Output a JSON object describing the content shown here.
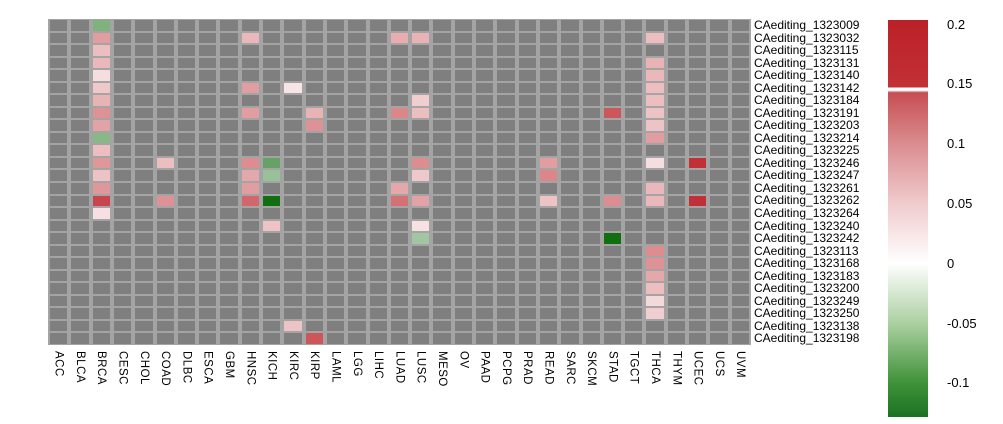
{
  "chart_data": {
    "type": "heatmap",
    "title": "",
    "xlabel": "",
    "ylabel": "",
    "x_categories": [
      "ACC",
      "BLCA",
      "BRCA",
      "CESC",
      "CHOL",
      "COAD",
      "DLBC",
      "ESCA",
      "GBM",
      "HNSC",
      "KICH",
      "KIRC",
      "KIRP",
      "LAML",
      "LGG",
      "LIHC",
      "LUAD",
      "LUSC",
      "MESO",
      "OV",
      "PAAD",
      "PCPG",
      "PRAD",
      "READ",
      "SARC",
      "SKCM",
      "STAD",
      "TGCT",
      "THCA",
      "THYM",
      "UCEC",
      "UCS",
      "UVM"
    ],
    "y_categories": [
      "CAediting_1323009",
      "CAediting_1323032",
      "CAediting_1323115",
      "CAediting_1323131",
      "CAediting_1323140",
      "CAediting_1323142",
      "CAediting_1323184",
      "CAediting_1323191",
      "CAediting_1323203",
      "CAediting_1323214",
      "CAediting_1323225",
      "CAediting_1323246",
      "CAediting_1323247",
      "CAediting_1323261",
      "CAediting_1323262",
      "CAediting_1323264",
      "CAediting_1323240",
      "CAediting_1323242",
      "CAediting_1323113",
      "CAediting_1323168",
      "CAediting_1323183",
      "CAediting_1323200",
      "CAediting_1323249",
      "CAediting_1323250",
      "CAediting_1323138",
      "CAediting_1323198"
    ],
    "na_color": "#7f7f7f",
    "grid_line_color": "#a4a4a4",
    "colormap": {
      "zero_color": "#ffffff",
      "pos_color": "#be252b",
      "pos_limit": 0.2,
      "neg_color": "#006400",
      "neg_limit": -0.15
    },
    "legend": {
      "tick_labels": [
        "0.2",
        "0.15",
        "0.1",
        "0.05",
        "0",
        "-0.05",
        "-0.1"
      ],
      "tick_values": [
        0.2,
        0.15,
        0.1,
        0.05,
        0,
        -0.05,
        -0.1
      ],
      "break_line_value": 0.145,
      "position": "right"
    },
    "cells": [
      {
        "y": "CAediting_1323009",
        "x": "BRCA",
        "v": -0.075
      },
      {
        "y": "CAediting_1323032",
        "x": "BRCA",
        "v": 0.09
      },
      {
        "y": "CAediting_1323032",
        "x": "HNSC",
        "v": 0.065
      },
      {
        "y": "CAediting_1323032",
        "x": "LUAD",
        "v": 0.075
      },
      {
        "y": "CAediting_1323032",
        "x": "LUSC",
        "v": 0.07
      },
      {
        "y": "CAediting_1323032",
        "x": "THCA",
        "v": 0.06
      },
      {
        "y": "CAediting_1323115",
        "x": "BRCA",
        "v": 0.06
      },
      {
        "y": "CAediting_1323131",
        "x": "BRCA",
        "v": 0.065
      },
      {
        "y": "CAediting_1323131",
        "x": "THCA",
        "v": 0.07
      },
      {
        "y": "CAediting_1323140",
        "x": "BRCA",
        "v": 0.03
      },
      {
        "y": "CAediting_1323140",
        "x": "THCA",
        "v": 0.065
      },
      {
        "y": "CAediting_1323142",
        "x": "BRCA",
        "v": 0.05
      },
      {
        "y": "CAediting_1323142",
        "x": "HNSC",
        "v": 0.09
      },
      {
        "y": "CAediting_1323142",
        "x": "KIRC",
        "v": 0.025
      },
      {
        "y": "CAediting_1323142",
        "x": "THCA",
        "v": 0.06
      },
      {
        "y": "CAediting_1323184",
        "x": "BRCA",
        "v": 0.07
      },
      {
        "y": "CAediting_1323184",
        "x": "LUSC",
        "v": 0.045
      },
      {
        "y": "CAediting_1323184",
        "x": "THCA",
        "v": 0.06
      },
      {
        "y": "CAediting_1323191",
        "x": "BRCA",
        "v": 0.1
      },
      {
        "y": "CAediting_1323191",
        "x": "HNSC",
        "v": 0.09
      },
      {
        "y": "CAediting_1323191",
        "x": "KIRP",
        "v": 0.07
      },
      {
        "y": "CAediting_1323191",
        "x": "LUAD",
        "v": 0.11
      },
      {
        "y": "CAediting_1323191",
        "x": "LUSC",
        "v": 0.06
      },
      {
        "y": "CAediting_1323191",
        "x": "STAD",
        "v": 0.155
      },
      {
        "y": "CAediting_1323191",
        "x": "THCA",
        "v": 0.055
      },
      {
        "y": "CAediting_1323203",
        "x": "BRCA",
        "v": 0.085
      },
      {
        "y": "CAediting_1323203",
        "x": "KIRP",
        "v": 0.1
      },
      {
        "y": "CAediting_1323203",
        "x": "THCA",
        "v": 0.055
      },
      {
        "y": "CAediting_1323214",
        "x": "BRCA",
        "v": -0.07
      },
      {
        "y": "CAediting_1323214",
        "x": "THCA",
        "v": 0.09
      },
      {
        "y": "CAediting_1323225",
        "x": "BRCA",
        "v": 0.06
      },
      {
        "y": "CAediting_1323246",
        "x": "BRCA",
        "v": 0.095
      },
      {
        "y": "CAediting_1323246",
        "x": "COAD",
        "v": 0.06
      },
      {
        "y": "CAediting_1323246",
        "x": "HNSC",
        "v": 0.105
      },
      {
        "y": "CAediting_1323246",
        "x": "KICH",
        "v": -0.09
      },
      {
        "y": "CAediting_1323246",
        "x": "LUSC",
        "v": 0.105
      },
      {
        "y": "CAediting_1323246",
        "x": "READ",
        "v": 0.09
      },
      {
        "y": "CAediting_1323246",
        "x": "THCA",
        "v": 0.03
      },
      {
        "y": "CAediting_1323246",
        "x": "UCEC",
        "v": 0.19
      },
      {
        "y": "CAediting_1323247",
        "x": "BRCA",
        "v": 0.055
      },
      {
        "y": "CAediting_1323247",
        "x": "HNSC",
        "v": 0.08
      },
      {
        "y": "CAediting_1323247",
        "x": "KICH",
        "v": -0.06
      },
      {
        "y": "CAediting_1323247",
        "x": "LUSC",
        "v": 0.05
      },
      {
        "y": "CAediting_1323247",
        "x": "READ",
        "v": 0.11
      },
      {
        "y": "CAediting_1323261",
        "x": "BRCA",
        "v": 0.095
      },
      {
        "y": "CAediting_1323261",
        "x": "HNSC",
        "v": 0.09
      },
      {
        "y": "CAediting_1323261",
        "x": "LUAD",
        "v": 0.08
      },
      {
        "y": "CAediting_1323261",
        "x": "THCA",
        "v": 0.065
      },
      {
        "y": "CAediting_1323262",
        "x": "BRCA",
        "v": 0.17
      },
      {
        "y": "CAediting_1323262",
        "x": "COAD",
        "v": 0.1
      },
      {
        "y": "CAediting_1323262",
        "x": "HNSC",
        "v": 0.14
      },
      {
        "y": "CAediting_1323262",
        "x": "KICH",
        "v": -0.14
      },
      {
        "y": "CAediting_1323262",
        "x": "LUAD",
        "v": 0.13
      },
      {
        "y": "CAediting_1323262",
        "x": "LUSC",
        "v": 0.085
      },
      {
        "y": "CAediting_1323262",
        "x": "READ",
        "v": 0.055
      },
      {
        "y": "CAediting_1323262",
        "x": "STAD",
        "v": 0.105
      },
      {
        "y": "CAediting_1323262",
        "x": "THCA",
        "v": 0.065
      },
      {
        "y": "CAediting_1323262",
        "x": "UCEC",
        "v": 0.19
      },
      {
        "y": "CAediting_1323264",
        "x": "BRCA",
        "v": 0.028
      },
      {
        "y": "CAediting_1323240",
        "x": "KICH",
        "v": 0.055
      },
      {
        "y": "CAediting_1323240",
        "x": "LUSC",
        "v": 0.027
      },
      {
        "y": "CAediting_1323242",
        "x": "LUSC",
        "v": -0.055
      },
      {
        "y": "CAediting_1323242",
        "x": "STAD",
        "v": -0.14
      },
      {
        "y": "CAediting_1323113",
        "x": "THCA",
        "v": 0.105
      },
      {
        "y": "CAediting_1323168",
        "x": "THCA",
        "v": 0.1
      },
      {
        "y": "CAediting_1323183",
        "x": "THCA",
        "v": 0.08
      },
      {
        "y": "CAediting_1323200",
        "x": "THCA",
        "v": 0.06
      },
      {
        "y": "CAediting_1323249",
        "x": "THCA",
        "v": 0.035
      },
      {
        "y": "CAediting_1323250",
        "x": "THCA",
        "v": 0.045
      },
      {
        "y": "CAediting_1323138",
        "x": "KIRC",
        "v": 0.055
      },
      {
        "y": "CAediting_1323198",
        "x": "KIRP",
        "v": 0.155
      }
    ]
  }
}
